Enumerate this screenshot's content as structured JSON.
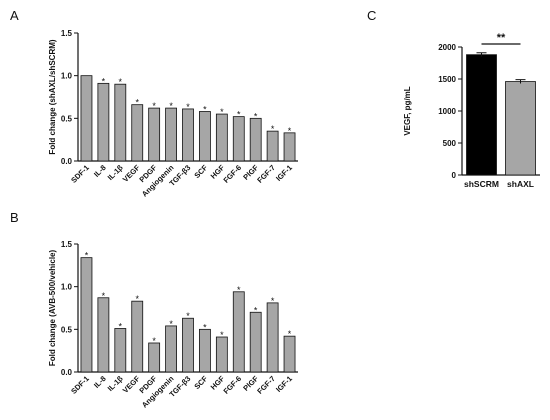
{
  "panels": {
    "a": "A",
    "b": "B",
    "c": "C"
  },
  "colors": {
    "bar_gray": "#a6a6a6",
    "bar_black": "#000000",
    "star_red": "#d62728",
    "axis": "#111111"
  },
  "chart_data": [
    {
      "type": "bar",
      "ylabel": "Fold change (shAXL/shSCRM)",
      "ylim": [
        0,
        1.5
      ],
      "yticks": [
        "0.0",
        "0.5",
        "1.0",
        "1.5"
      ],
      "categories": [
        "SDF-1",
        "IL-8",
        "IL-1β",
        "VEGF",
        "PDGF",
        "Angiogenin",
        "TGF-β3",
        "SCF",
        "HGF",
        "FGF-6",
        "PlGF",
        "FGF-7",
        "IGF-1"
      ],
      "values": [
        1.0,
        0.91,
        0.9,
        0.66,
        0.62,
        0.62,
        0.61,
        0.58,
        0.55,
        0.52,
        0.5,
        0.35,
        0.33
      ],
      "significance": [
        "",
        "*",
        "*",
        "*",
        "*",
        "*",
        "*",
        "*",
        "*",
        "*",
        "*",
        "*",
        "*"
      ],
      "grid": false
    },
    {
      "type": "bar",
      "ylabel": "Fold change (AVB-500/vehicle)",
      "ylim": [
        0,
        1.5
      ],
      "yticks": [
        "0.0",
        "0.5",
        "1.0",
        "1.5"
      ],
      "categories": [
        "SDF-1",
        "IL-8",
        "IL-1β",
        "VEGF",
        "PDGF",
        "Angiogenin",
        "TGF-β3",
        "SCF",
        "HGF",
        "FGF-6",
        "PlGF",
        "FGF-7",
        "IGF-1"
      ],
      "values": [
        1.34,
        0.87,
        0.51,
        0.83,
        0.34,
        0.54,
        0.63,
        0.5,
        0.41,
        0.94,
        0.7,
        0.81,
        0.42
      ],
      "significance": [
        "*",
        "*",
        "*",
        "*",
        "*",
        "*",
        "*",
        "*",
        "*",
        "*",
        "*",
        "*",
        "*"
      ],
      "grid": false
    },
    {
      "type": "bar",
      "ylabel": "VEGF, pg/mL",
      "ylim": [
        0,
        2000
      ],
      "yticks": [
        "0",
        "500",
        "1000",
        "1500",
        "2000"
      ],
      "categories": [
        "shSCRM",
        "shAXL"
      ],
      "values": [
        1880,
        1460
      ],
      "errors": [
        30,
        30
      ],
      "bar_colors": [
        "#000000",
        "#a6a6a6"
      ],
      "comparison": "**",
      "grid": false
    }
  ]
}
